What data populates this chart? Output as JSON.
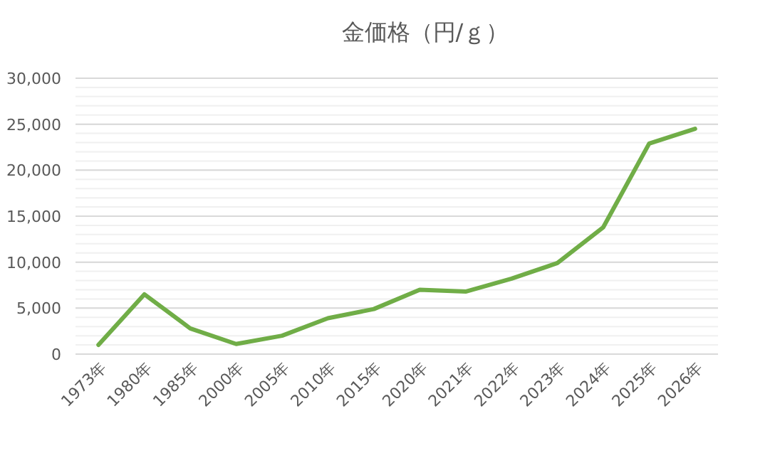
{
  "chart_data": {
    "type": "line",
    "title": "金価格（円/ｇ）",
    "categories": [
      "1973年",
      "1980年",
      "1985年",
      "2000年",
      "2005年",
      "2010年",
      "2015年",
      "2020年",
      "2021年",
      "2022年",
      "2023年",
      "2024年",
      "2025年",
      "2026年"
    ],
    "series": [
      {
        "color": "#70ad47",
        "values": [
          1000,
          6500,
          2800,
          1100,
          2000,
          3900,
          4900,
          7000,
          6800,
          8200,
          9900,
          13800,
          22900,
          24500
        ]
      }
    ],
    "ylim": [
      0,
      30000
    ],
    "yticks": [
      {
        "value": 0,
        "label": "0"
      },
      {
        "value": 5000,
        "label": "5,000"
      },
      {
        "value": 10000,
        "label": "10,000"
      },
      {
        "value": 15000,
        "label": "15,000"
      },
      {
        "value": 20000,
        "label": "20,000"
      },
      {
        "value": 25000,
        "label": "25,000"
      },
      {
        "value": 30000,
        "label": "30,000"
      }
    ],
    "grid": "y"
  }
}
